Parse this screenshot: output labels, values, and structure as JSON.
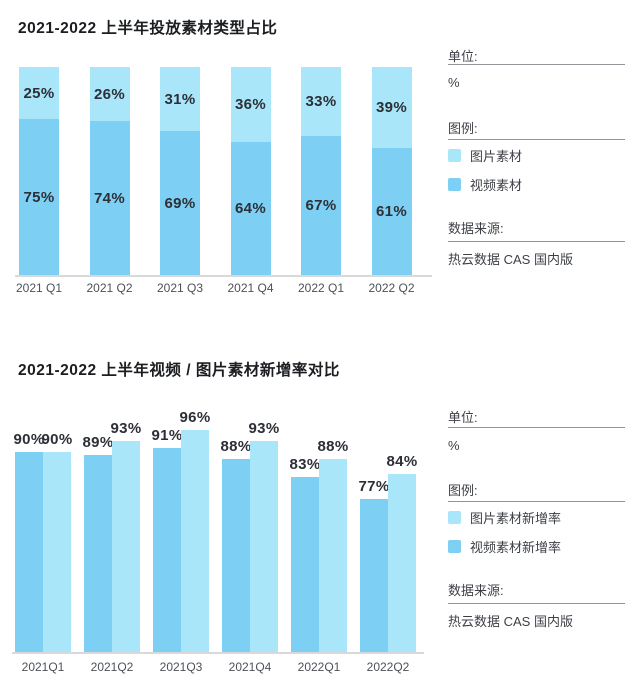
{
  "colors": {
    "image_material_light_blue": "#a9e6fa",
    "video_material_blue": "#7dd0f4",
    "axis_line_gray": "#d9d9d9",
    "text_dark": "#2c2f36"
  },
  "chart_data": [
    {
      "type": "bar",
      "variant": "stacked-100",
      "title": "2021-2022 上半年投放素材类型占比",
      "categories": [
        "2021 Q1",
        "2021 Q2",
        "2021 Q3",
        "2021 Q4",
        "2022 Q1",
        "2022 Q2"
      ],
      "series": [
        {
          "name": "图片素材",
          "color": "#a9e6fa",
          "values": [
            25,
            26,
            31,
            36,
            33,
            39
          ]
        },
        {
          "name": "视频素材",
          "color": "#7dd0f4",
          "values": [
            75,
            74,
            69,
            64,
            67,
            61
          ]
        }
      ],
      "unit": "%",
      "ylim": [
        0,
        100
      ],
      "grid": false,
      "legend_position": "right",
      "data_labels": "inside"
    },
    {
      "type": "bar",
      "variant": "grouped",
      "title": "2021-2022 上半年视频 / 图片素材新增率对比",
      "categories": [
        "2021Q1",
        "2021Q2",
        "2021Q3",
        "2021Q4",
        "2022Q1",
        "2022Q2"
      ],
      "series": [
        {
          "name": "视频素材新增率",
          "color": "#7dd0f4",
          "values": [
            90,
            89,
            91,
            88,
            83,
            77
          ]
        },
        {
          "name": "图片素材新增率",
          "color": "#a9e6fa",
          "values": [
            90,
            93,
            96,
            93,
            88,
            84
          ]
        }
      ],
      "unit": "%",
      "ylim": [
        0,
        100
      ],
      "grid": false,
      "legend_position": "right",
      "data_labels": "above"
    }
  ],
  "sidebars": [
    {
      "unit_label": "单位:",
      "unit_value": "%",
      "legend_label": "图例:",
      "legend": [
        {
          "label": "图片素材",
          "color": "#a9e6fa"
        },
        {
          "label": "视频素材",
          "color": "#7dd0f4"
        }
      ],
      "source_label": "数据来源:",
      "source_value": "热云数据 CAS 国内版"
    },
    {
      "unit_label": "单位:",
      "unit_value": "%",
      "legend_label": "图例:",
      "legend": [
        {
          "label": "图片素材新增率",
          "color": "#a9e6fa"
        },
        {
          "label": "视频素材新增率",
          "color": "#7dd0f4"
        }
      ],
      "source_label": "数据来源:",
      "source_value": "热云数据 CAS 国内版"
    }
  ]
}
